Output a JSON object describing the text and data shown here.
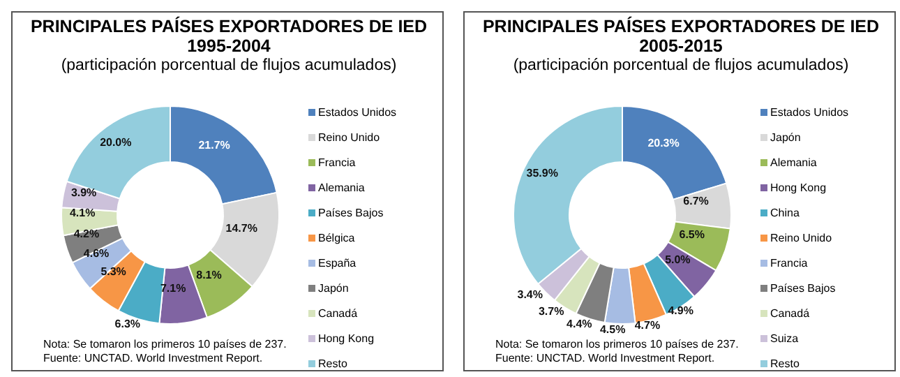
{
  "chart_data": [
    {
      "type": "donut",
      "title": "PRINCIPALES PAÍSES EXPORTADORES DE IED\n1995-2004",
      "subtitle": "(participación porcentual de flujos acumulados)",
      "categories": [
        "Estados Unidos",
        "Reino Unido",
        "Francia",
        "Alemania",
        "Países Bajos",
        "Bélgica",
        "España",
        "Japón",
        "Canadá",
        "Hong Kong",
        "Resto"
      ],
      "values": [
        21.7,
        14.7,
        8.1,
        7.1,
        6.3,
        5.3,
        4.6,
        4.2,
        4.1,
        3.9,
        20.0
      ],
      "colors": [
        "#4f81bd",
        "#d9d9d9",
        "#9bbb59",
        "#8064a2",
        "#4bacc6",
        "#f79646",
        "#a6bce3",
        "#7f7f7f",
        "#d7e4bd",
        "#ccc1da",
        "#93cddd"
      ],
      "value_labels": [
        "21.7%",
        "14.7%",
        "8.1%",
        "7.1%",
        "6.3%",
        "5.3%",
        "4.6%",
        "4.2%",
        "4.1%",
        "3.9%",
        "20.0%"
      ],
      "legend": "right",
      "annotations": [
        "Nota: Se tomaron los primeros 10 países de 237.",
        "Fuente: UNCTAD. World Investment Report."
      ]
    },
    {
      "type": "donut",
      "title": "PRINCIPALES PAÍSES EXPORTADORES DE IED\n2005-2015",
      "subtitle": "(participación porcentual de flujos acumulados)",
      "categories": [
        "Estados Unidos",
        "Japón",
        "Alemania",
        "Hong Kong",
        "China",
        "Reino Unido",
        "Francia",
        "Países Bajos",
        "Canadá",
        "Suiza",
        "Resto"
      ],
      "values": [
        20.3,
        6.7,
        6.5,
        5.0,
        4.9,
        4.7,
        4.5,
        4.4,
        3.7,
        3.4,
        35.9
      ],
      "colors": [
        "#4f81bd",
        "#d9d9d9",
        "#9bbb59",
        "#8064a2",
        "#4bacc6",
        "#f79646",
        "#a6bce3",
        "#7f7f7f",
        "#d7e4bd",
        "#ccc1da",
        "#93cddd"
      ],
      "value_labels": [
        "20.3%",
        "6.7%",
        "6.5%",
        "5.0%",
        "4.9%",
        "4.7%",
        "4.5%",
        "4.4%",
        "3.7%",
        "3.4%",
        "35.9%"
      ],
      "legend": "right",
      "annotations": [
        "Nota: Se tomaron los primeros 10 países de 237.",
        "Fuente: UNCTAD. World Investment Report."
      ]
    }
  ]
}
